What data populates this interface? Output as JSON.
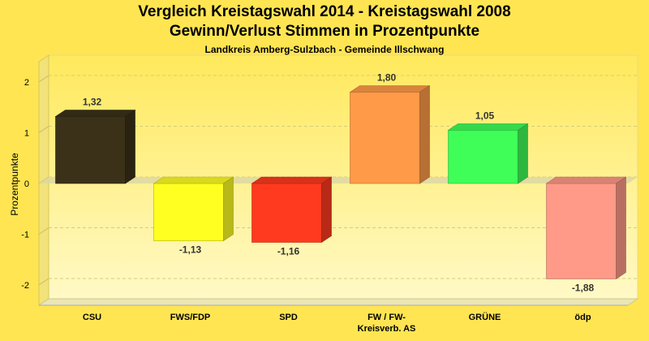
{
  "chart_data": {
    "type": "bar",
    "title": "Vergleich Kreistagswahl 2014 - Kreistagswahl 2008",
    "subtitle": "Gewinn/Verlust Stimmen in Prozentpunkte",
    "caption": "Landkreis Amberg-Sulzbach - Gemeinde Illschwang",
    "ylabel": "Prozentpunkte",
    "xlabel": "",
    "ylim": [
      -2.4,
      2.4
    ],
    "yticks": [
      2,
      1,
      0,
      -1,
      -2
    ],
    "grid": true,
    "categories": [
      "CSU",
      "FWS/FDP",
      "SPD",
      "FW / FW-Kreisverb. AS",
      "GRÜNE",
      "ödp"
    ],
    "category_lines": [
      [
        "CSU"
      ],
      [
        "FWS/FDP"
      ],
      [
        "SPD"
      ],
      [
        "FW / FW-",
        "Kreisverb. AS"
      ],
      [
        "GRÜNE"
      ],
      [
        "ödp"
      ]
    ],
    "values": [
      1.32,
      -1.13,
      -1.16,
      1.8,
      1.05,
      -1.88
    ],
    "value_labels": [
      "1,32",
      "-1,13",
      "-1,16",
      "1,80",
      "1,05",
      "-1,88"
    ],
    "colors": [
      "#3b3118",
      "#ffff22",
      "#ff3a1e",
      "#ff9a48",
      "#3ffe58",
      "#ff9a88"
    ]
  }
}
